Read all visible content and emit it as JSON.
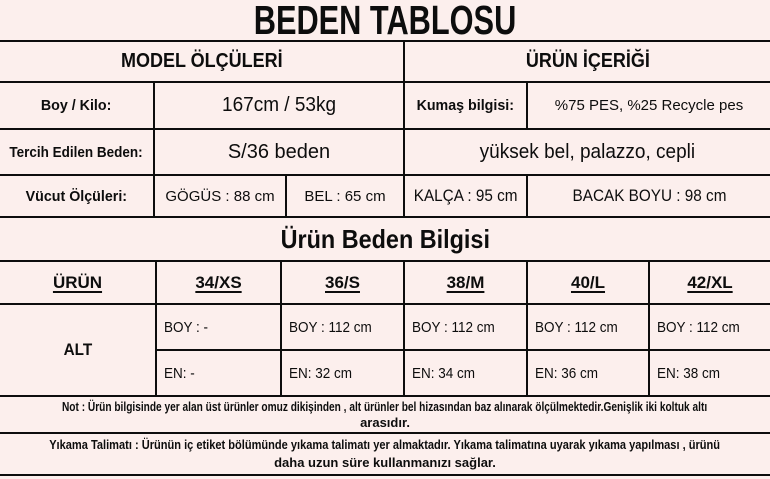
{
  "theme": {
    "bg": "#fcefed",
    "line": "#0d0d0d",
    "ink": "#0d0d0d"
  },
  "title": "BEDEN TABLOSU",
  "model_table": {
    "model_header": "MODEL ÖLÇÜLERİ",
    "content_header": "ÜRÜN İÇERİĞİ",
    "height_weight_label": "Boy / Kilo:",
    "height_weight_value": "167cm / 53kg",
    "fabric_label": "Kumaş bilgisi:",
    "fabric_value": "%75 PES, %25 Recycle pes",
    "preferred_size_label": "Tercih Edilen Beden:",
    "preferred_size_value": "S/36 beden",
    "product_features": "yüksek bel, palazzo, cepli",
    "body_measures_label": "Vücut Ölçüleri:",
    "chest": "GÖGÜS : 88 cm",
    "waist": "BEL : 65 cm",
    "hip": "KALÇA : 95 cm",
    "leg_length": "BACAK BOYU : 98 cm"
  },
  "size_table": {
    "section_title": "Ürün Beden Bilgisi",
    "columns": [
      "ÜRÜN",
      "34/XS",
      "36/S",
      "38/M",
      "40/L",
      "42/XL"
    ],
    "row_label": "ALT",
    "boy": [
      "BOY : -",
      "BOY : 112 cm",
      "BOY : 112 cm",
      "BOY : 112 cm",
      "BOY : 112 cm"
    ],
    "en": [
      "EN: -",
      "EN: 32 cm",
      "EN: 34 cm",
      "EN: 36 cm",
      "EN: 38 cm"
    ]
  },
  "notes": {
    "note_line1": "Not : Ürün bilgisinde yer alan üst ürünler omuz dikişinden , alt ürünler bel hizasından baz alınarak ölçülmektedir.Genişlik iki koltuk altı",
    "note_line2": "arasıdır.",
    "washing_line1": "Yıkama Talimatı : Ürünün iç etiket bölümünde yıkama talimatı yer almaktadır. Yıkama talimatına uyarak yıkama yapılması , ürünü",
    "washing_line2": "daha uzun süre kullanmanızı sağlar."
  }
}
